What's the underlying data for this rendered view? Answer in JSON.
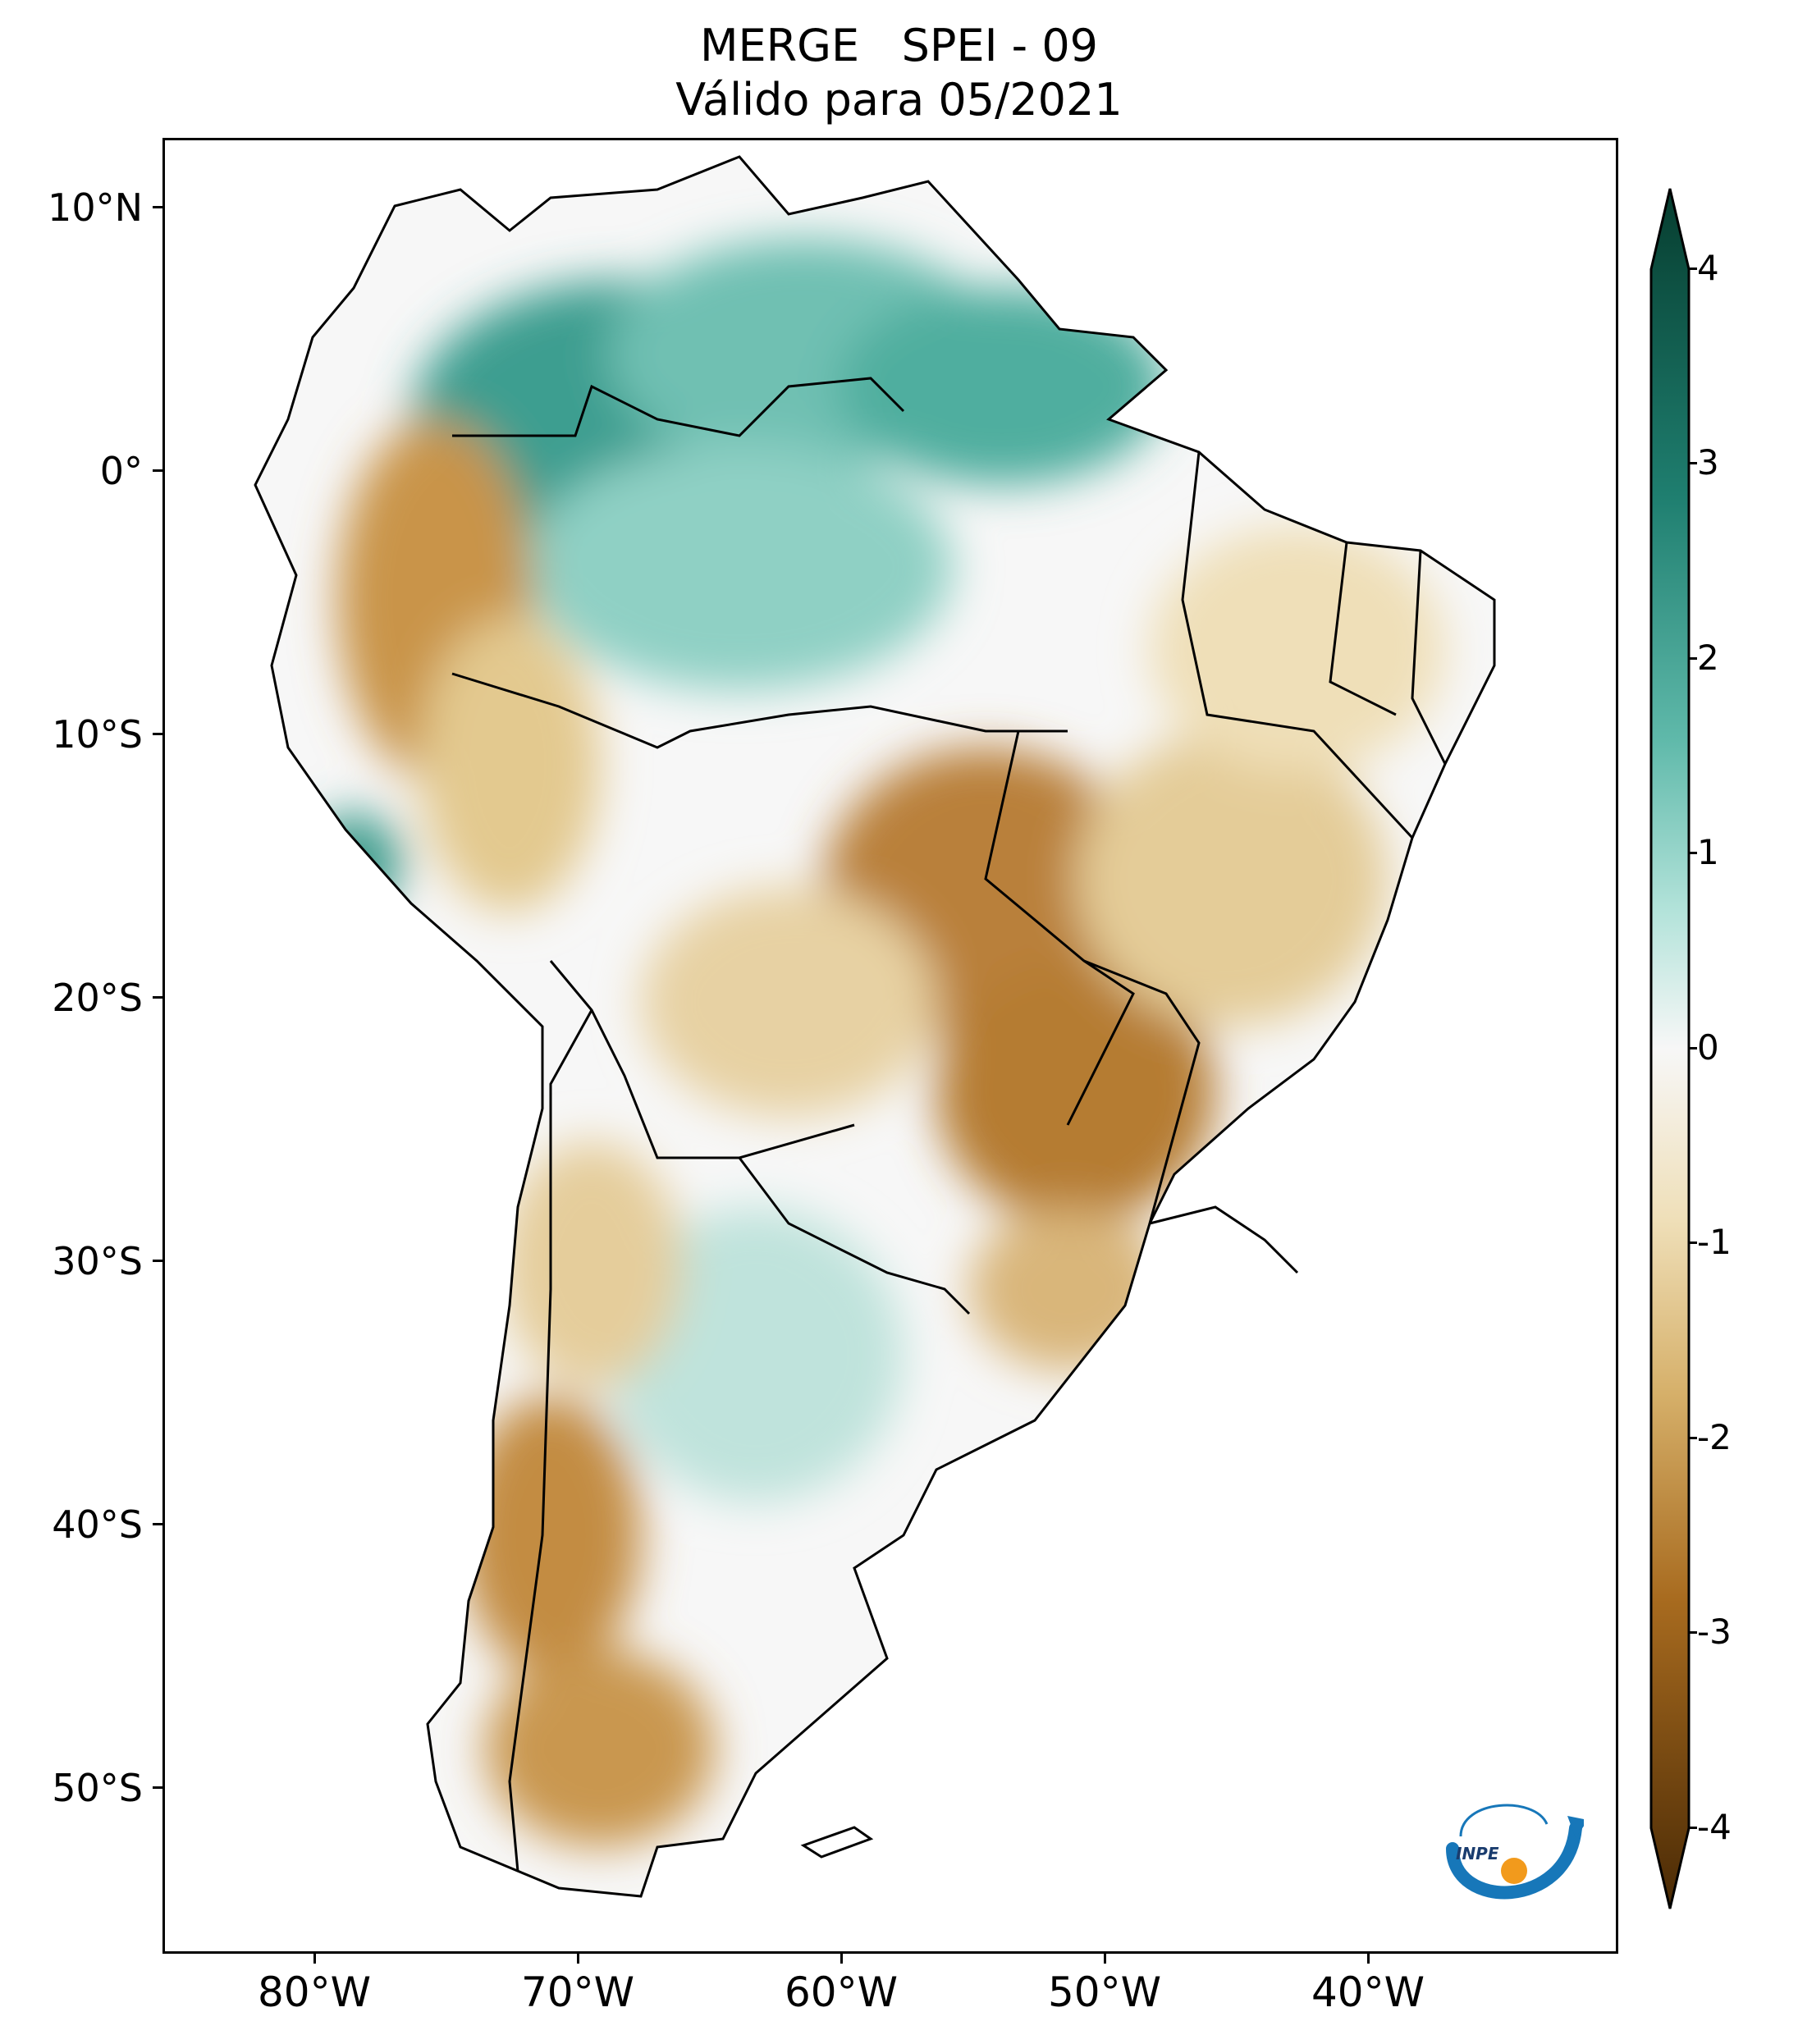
{
  "title": {
    "line1": "MERGE   SPEI - 09",
    "line2": "Válido para 05/2021"
  },
  "map": {
    "region": "South America",
    "variable": "SPEI - 09",
    "latitude_labels": [
      "10°N",
      "0°",
      "10°S",
      "20°S",
      "30°S",
      "40°S",
      "50°S"
    ],
    "longitude_labels": [
      "80°W",
      "70°W",
      "60°W",
      "50°W",
      "40°W"
    ]
  },
  "colorbar": {
    "min": -4,
    "max": 4,
    "tick_labels": [
      "4",
      "3",
      "2",
      "1",
      "0",
      "-1",
      "-2",
      "-3",
      "-4"
    ],
    "colors": {
      "top": "#063d2f",
      "high": "#2a8f80",
      "mid_high": "#9fd9cf",
      "zero": "#f7f7f7",
      "mid_low": "#e8d4a6",
      "low": "#b87d2a",
      "bottom": "#4a2a05"
    }
  },
  "logo": {
    "text": "INPE",
    "colors": {
      "arc": "#1777b9",
      "dot": "#f29a1c"
    }
  }
}
